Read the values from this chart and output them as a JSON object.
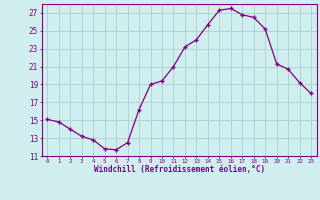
{
  "x": [
    0,
    1,
    2,
    3,
    4,
    5,
    6,
    7,
    8,
    9,
    10,
    11,
    12,
    13,
    14,
    15,
    16,
    17,
    18,
    19,
    20,
    21,
    22,
    23
  ],
  "y": [
    15.1,
    14.8,
    14.0,
    13.2,
    12.8,
    11.8,
    11.7,
    12.5,
    16.2,
    19.0,
    19.4,
    21.0,
    23.2,
    24.0,
    25.7,
    27.3,
    27.5,
    26.8,
    26.5,
    25.2,
    21.3,
    20.7,
    19.2,
    18.0
  ],
  "xlabel": "Windchill (Refroidissement éolien,°C)",
  "ylabel": "",
  "ylim": [
    11,
    28
  ],
  "xlim": [
    -0.5,
    23.5
  ],
  "yticks": [
    11,
    13,
    15,
    17,
    19,
    21,
    23,
    25,
    27
  ],
  "xtick_labels": [
    "0",
    "1",
    "2",
    "3",
    "4",
    "5",
    "6",
    "7",
    "8",
    "9",
    "10",
    "11",
    "12",
    "13",
    "14",
    "15",
    "16",
    "17",
    "18",
    "19",
    "20",
    "21",
    "22",
    "23"
  ],
  "line_color": "#800080",
  "marker": "+",
  "bg_color": "#d0eeee",
  "grid_color": "#aed4d4",
  "axis_color": "#800080",
  "tick_color": "#800080",
  "label_color": "#800080"
}
